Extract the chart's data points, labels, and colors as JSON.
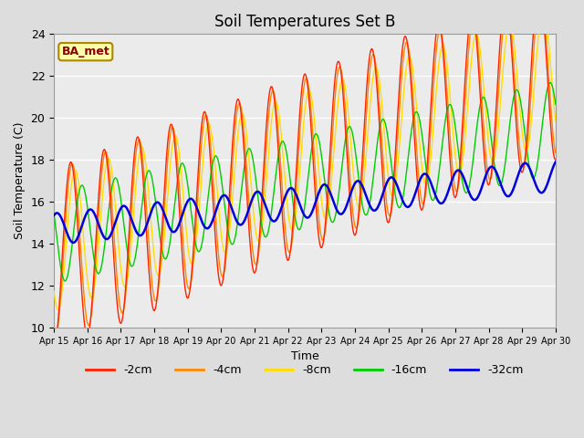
{
  "title": "Soil Temperatures Set B",
  "xlabel": "Time",
  "ylabel": "Soil Temperature (C)",
  "annotation": "BA_met",
  "legend_labels": [
    "-2cm",
    "-4cm",
    "-8cm",
    "-16cm",
    "-32cm"
  ],
  "line_colors": [
    "#ff2200",
    "#ff8800",
    "#ffdd00",
    "#00cc00",
    "#0000dd"
  ],
  "ylim": [
    10,
    24
  ],
  "tick_labels": [
    "Apr 15",
    "Apr 16",
    "Apr 17",
    "Apr 18",
    "Apr 19",
    "Apr 20",
    "Apr 21",
    "Apr 22",
    "Apr 23",
    "Apr 24",
    "Apr 25",
    "Apr 26",
    "Apr 27",
    "Apr 28",
    "Apr 29",
    "Apr 30"
  ],
  "title_fontsize": 12,
  "axis_fontsize": 9,
  "legend_fontsize": 9
}
